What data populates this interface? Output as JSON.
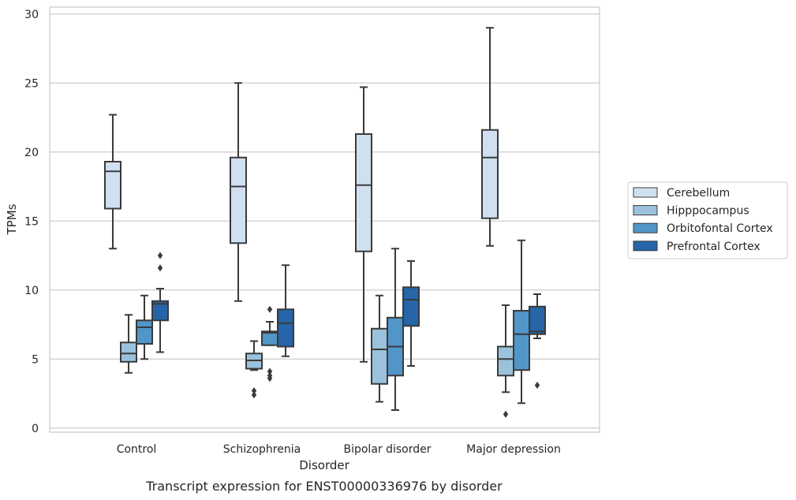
{
  "chart_data": {
    "type": "boxplot",
    "caption": "Transcript expression for ENST00000336976 by disorder",
    "xlabel": "Disorder",
    "ylabel": "TPMs",
    "ylim": [
      -0.3,
      30.5
    ],
    "yticks": [
      0,
      5,
      10,
      15,
      20,
      25,
      30
    ],
    "grid": true,
    "legend_position": "right",
    "categories": [
      "Control",
      "Schizophrenia",
      "Bipolar disorder",
      "Major depression"
    ],
    "series": [
      {
        "name": "Cerebellum",
        "color": "#d0e0f0",
        "boxes": [
          {
            "whislo": 13.0,
            "q1": 15.9,
            "med": 18.6,
            "q3": 19.3,
            "whishi": 22.7,
            "fliers": []
          },
          {
            "whislo": 9.2,
            "q1": 13.4,
            "med": 17.5,
            "q3": 19.6,
            "whishi": 25.0,
            "fliers": []
          },
          {
            "whislo": 4.8,
            "q1": 12.8,
            "med": 17.6,
            "q3": 21.3,
            "whishi": 24.7,
            "fliers": []
          },
          {
            "whislo": 13.2,
            "q1": 15.2,
            "med": 19.6,
            "q3": 21.6,
            "whishi": 29.0,
            "fliers": []
          }
        ]
      },
      {
        "name": "Hipppocampus",
        "color": "#9ac2dc",
        "boxes": [
          {
            "whislo": 4.0,
            "q1": 4.8,
            "med": 5.4,
            "q3": 6.2,
            "whishi": 8.2,
            "fliers": []
          },
          {
            "whislo": 4.2,
            "q1": 4.3,
            "med": 4.9,
            "q3": 5.4,
            "whishi": 6.3,
            "fliers": [
              2.7,
              2.4
            ]
          },
          {
            "whislo": 1.9,
            "q1": 3.2,
            "med": 5.7,
            "q3": 7.2,
            "whishi": 9.6,
            "fliers": []
          },
          {
            "whislo": 2.6,
            "q1": 3.8,
            "med": 5.0,
            "q3": 5.9,
            "whishi": 8.9,
            "fliers": [
              1.0
            ]
          }
        ]
      },
      {
        "name": "Orbitofontal Cortex",
        "color": "#5096c8",
        "boxes": [
          {
            "whislo": 5.0,
            "q1": 6.1,
            "med": 7.3,
            "q3": 7.8,
            "whishi": 9.6,
            "fliers": []
          },
          {
            "whislo": 6.0,
            "q1": 6.0,
            "med": 6.9,
            "q3": 7.0,
            "whishi": 7.7,
            "fliers": [
              8.6,
              4.1,
              3.8,
              3.6
            ]
          },
          {
            "whislo": 1.3,
            "q1": 3.8,
            "med": 5.9,
            "q3": 8.0,
            "whishi": 13.0,
            "fliers": []
          },
          {
            "whislo": 1.8,
            "q1": 4.2,
            "med": 6.8,
            "q3": 8.5,
            "whishi": 13.6,
            "fliers": []
          }
        ]
      },
      {
        "name": "Prefrontal Cortex",
        "color": "#2565a8",
        "boxes": [
          {
            "whislo": 5.5,
            "q1": 7.8,
            "med": 9.0,
            "q3": 9.2,
            "whishi": 10.1,
            "fliers": [
              12.5,
              11.6
            ]
          },
          {
            "whislo": 5.2,
            "q1": 5.9,
            "med": 7.6,
            "q3": 8.6,
            "whishi": 11.8,
            "fliers": []
          },
          {
            "whislo": 4.5,
            "q1": 7.4,
            "med": 9.3,
            "q3": 10.2,
            "whishi": 12.1,
            "fliers": []
          },
          {
            "whislo": 6.5,
            "q1": 6.8,
            "med": 7.0,
            "q3": 8.8,
            "whishi": 9.7,
            "fliers": [
              3.1
            ]
          }
        ]
      }
    ]
  }
}
